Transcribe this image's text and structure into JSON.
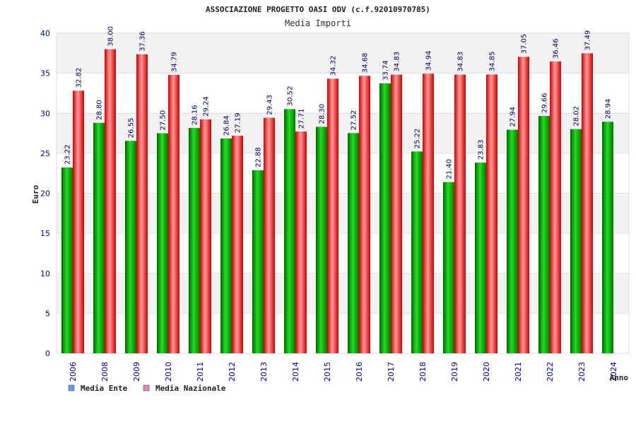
{
  "chart_data": {
    "type": "bar",
    "title": "ASSOCIAZIONE PROGETTO OASI ODV (c.f.92010970785)",
    "subtitle": "Media Importi",
    "ylabel": "Euro",
    "xlabel": "Anno",
    "ylim": [
      0,
      40
    ],
    "yticks": [
      0,
      5,
      10,
      15,
      20,
      25,
      30,
      35,
      40
    ],
    "grid": true,
    "legend_position": "bottom-left",
    "categories": [
      "2006",
      "2008",
      "2009",
      "2010",
      "2011",
      "2012",
      "2013",
      "2014",
      "2015",
      "2016",
      "2017",
      "2018",
      "2019",
      "2020",
      "2021",
      "2022",
      "2023",
      "2024"
    ],
    "series": [
      {
        "name": "Media Ente",
        "color": "#00b000",
        "legend_color": "#6699ee",
        "values": [
          23.22,
          28.8,
          26.55,
          27.5,
          28.16,
          26.84,
          22.88,
          30.52,
          28.3,
          27.52,
          33.74,
          25.22,
          21.4,
          23.83,
          27.94,
          29.66,
          28.02,
          28.94
        ],
        "labels": [
          "23.22",
          "28.80",
          "26.55",
          "27.50",
          "28.16",
          "26.84",
          "22.88",
          "30.52",
          "28.30",
          "27.52",
          "33.74",
          "25.22",
          "21.40",
          "23.83",
          "27.94",
          "29.66",
          "28.02",
          "28.94"
        ]
      },
      {
        "name": "Media Nazionale",
        "color": "#ee2222",
        "legend_color": "#dd88bb",
        "values": [
          32.82,
          38.0,
          37.36,
          34.79,
          29.24,
          27.19,
          29.43,
          27.71,
          34.32,
          34.68,
          34.83,
          34.94,
          34.83,
          34.85,
          37.05,
          36.46,
          37.49,
          null
        ],
        "labels": [
          "32.82",
          "38.00",
          "37.36",
          "34.79",
          "29.24",
          "27.19",
          "29.43",
          "27.71",
          "34.32",
          "34.68",
          "34.83",
          "34.94",
          "34.83",
          "34.85",
          "37.05",
          "36.46",
          "37.49",
          null
        ]
      }
    ]
  }
}
